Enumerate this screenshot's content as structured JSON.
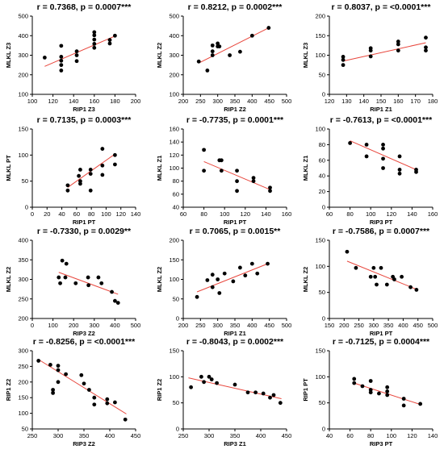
{
  "charts": [
    {
      "title": "r = 0.7368, p = 0.0007***",
      "xlabel": "RIP1 Z3",
      "ylabel": "MLKL Z3",
      "xlim": [
        100,
        200
      ],
      "xticks": [
        100,
        120,
        140,
        160,
        180,
        200
      ],
      "ylim": [
        100,
        500
      ],
      "yticks": [
        100,
        200,
        300,
        400,
        500
      ],
      "points": [
        [
          112,
          288
        ],
        [
          128,
          348
        ],
        [
          128,
          292
        ],
        [
          128,
          272
        ],
        [
          128,
          250
        ],
        [
          128,
          222
        ],
        [
          143,
          320
        ],
        [
          143,
          300
        ],
        [
          143,
          270
        ],
        [
          160,
          418
        ],
        [
          160,
          402
        ],
        [
          160,
          380
        ],
        [
          160,
          358
        ],
        [
          160,
          338
        ],
        [
          175,
          378
        ],
        [
          175,
          360
        ],
        [
          180,
          400
        ]
      ],
      "fit": [
        [
          112,
          243
        ],
        [
          180,
          398
        ]
      ]
    },
    {
      "title": "r = 0.8212, p = 0.0002***",
      "xlabel": "RIP1 Z2",
      "ylabel": "MLKL Z2",
      "xlim": [
        200,
        500
      ],
      "xticks": [
        200,
        250,
        300,
        350,
        400,
        450,
        500
      ],
      "ylim": [
        100,
        500
      ],
      "yticks": [
        100,
        200,
        300,
        400,
        500
      ],
      "points": [
        [
          245,
          268
        ],
        [
          270,
          222
        ],
        [
          285,
          350
        ],
        [
          285,
          320
        ],
        [
          285,
          300
        ],
        [
          300,
          360
        ],
        [
          300,
          345
        ],
        [
          305,
          345
        ],
        [
          335,
          300
        ],
        [
          365,
          318
        ],
        [
          400,
          400
        ],
        [
          448,
          440
        ]
      ],
      "fit": [
        [
          245,
          260
        ],
        [
          448,
          440
        ]
      ]
    },
    {
      "title": "r = 0.8037, p = <0.0001***",
      "xlabel": "RIP1 Z1",
      "ylabel": "MLKL Z3",
      "xlim": [
        120,
        180
      ],
      "xticks": [
        120,
        130,
        140,
        150,
        160,
        170,
        180
      ],
      "ylim": [
        0,
        200
      ],
      "yticks": [
        0,
        50,
        100,
        150,
        200
      ],
      "points": [
        [
          128,
          96
        ],
        [
          128,
          88
        ],
        [
          128,
          75
        ],
        [
          144,
          118
        ],
        [
          144,
          112
        ],
        [
          144,
          97
        ],
        [
          160,
          135
        ],
        [
          160,
          128
        ],
        [
          160,
          112
        ],
        [
          176,
          145
        ],
        [
          176,
          120
        ],
        [
          176,
          112
        ]
      ],
      "fit": [
        [
          128,
          85
        ],
        [
          176,
          132
        ]
      ]
    },
    {
      "title": "r = 0.7135, p = 0.0003***",
      "xlabel": "RIP1 PT",
      "ylabel": "MLKL PT",
      "xlim": [
        0,
        140
      ],
      "xticks": [
        0,
        20,
        40,
        60,
        80,
        100,
        120,
        140
      ],
      "ylim": [
        0,
        150
      ],
      "yticks": [
        0,
        50,
        100,
        150
      ],
      "points": [
        [
          48,
          42
        ],
        [
          48,
          32
        ],
        [
          63,
          60
        ],
        [
          65,
          72
        ],
        [
          65,
          50
        ],
        [
          65,
          45
        ],
        [
          79,
          72
        ],
        [
          79,
          64
        ],
        [
          79,
          32
        ],
        [
          95,
          112
        ],
        [
          95,
          80
        ],
        [
          95,
          62
        ],
        [
          112,
          100
        ],
        [
          112,
          82
        ]
      ],
      "fit": [
        [
          48,
          38
        ],
        [
          112,
          102
        ]
      ]
    },
    {
      "title": "r = -0.7735, p = 0.0001***",
      "xlabel": "RIP1 PT",
      "ylabel": "MLKL Z1",
      "xlim": [
        60,
        160
      ],
      "xticks": [
        60,
        80,
        100,
        120,
        140,
        160
      ],
      "ylim": [
        40,
        160
      ],
      "yticks": [
        40,
        60,
        80,
        100,
        120,
        140,
        160
      ],
      "points": [
        [
          80,
          128
        ],
        [
          80,
          96
        ],
        [
          95,
          112
        ],
        [
          97,
          112
        ],
        [
          97,
          96
        ],
        [
          112,
          96
        ],
        [
          112,
          80
        ],
        [
          112,
          65
        ],
        [
          128,
          85
        ],
        [
          128,
          80
        ],
        [
          144,
          70
        ],
        [
          144,
          65
        ]
      ],
      "fit": [
        [
          80,
          110
        ],
        [
          144,
          67
        ]
      ]
    },
    {
      "title": "r = -0.7613, p = <0.0001***",
      "xlabel": "RIP3 PT",
      "ylabel": "MLKL Z1",
      "xlim": [
        60,
        160
      ],
      "xticks": [
        60,
        80,
        100,
        120,
        140,
        160
      ],
      "ylim": [
        0,
        100
      ],
      "yticks": [
        0,
        20,
        40,
        60,
        80,
        100
      ],
      "points": [
        [
          80,
          82
        ],
        [
          96,
          80
        ],
        [
          96,
          65
        ],
        [
          112,
          80
        ],
        [
          112,
          75
        ],
        [
          112,
          62
        ],
        [
          112,
          50
        ],
        [
          128,
          65
        ],
        [
          128,
          48
        ],
        [
          128,
          43
        ],
        [
          144,
          48
        ],
        [
          144,
          45
        ]
      ],
      "fit": [
        [
          80,
          85
        ],
        [
          144,
          48
        ]
      ]
    },
    {
      "title": "r = -0.7330, p = 0.0029**",
      "xlabel": "RIP3 Z2",
      "ylabel": "MLKL Z2",
      "xlim": [
        0,
        500
      ],
      "xticks": [
        0,
        100,
        200,
        300,
        400,
        500
      ],
      "ylim": [
        200,
        400
      ],
      "yticks": [
        200,
        250,
        300,
        350,
        400
      ],
      "points": [
        [
          128,
          305
        ],
        [
          135,
          290
        ],
        [
          145,
          348
        ],
        [
          160,
          305
        ],
        [
          165,
          340
        ],
        [
          210,
          290
        ],
        [
          270,
          305
        ],
        [
          272,
          285
        ],
        [
          320,
          305
        ],
        [
          335,
          290
        ],
        [
          385,
          268
        ],
        [
          400,
          245
        ],
        [
          415,
          240
        ]
      ],
      "fit": [
        [
          128,
          318
        ],
        [
          415,
          262
        ]
      ]
    },
    {
      "title": "r = 0.7065, p = 0.0015**",
      "xlabel": "RIP1 Z1",
      "ylabel": "MLKL Z2",
      "xlim": [
        200,
        500
      ],
      "xticks": [
        200,
        250,
        300,
        350,
        400,
        450,
        500
      ],
      "ylim": [
        0,
        200
      ],
      "yticks": [
        0,
        50,
        100,
        150,
        200
      ],
      "points": [
        [
          240,
          55
        ],
        [
          270,
          98
        ],
        [
          285,
          112
        ],
        [
          285,
          80
        ],
        [
          300,
          100
        ],
        [
          305,
          65
        ],
        [
          320,
          115
        ],
        [
          345,
          95
        ],
        [
          365,
          130
        ],
        [
          380,
          110
        ],
        [
          400,
          140
        ],
        [
          415,
          115
        ],
        [
          445,
          140
        ]
      ],
      "fit": [
        [
          240,
          68
        ],
        [
          445,
          140
        ]
      ]
    },
    {
      "title": "r = -0.7586, p = 0.0007***",
      "xlabel": "RIP1 PT",
      "ylabel": "MLKL Z2",
      "xlim": [
        150,
        500
      ],
      "xticks": [
        150,
        200,
        250,
        300,
        350,
        400,
        450,
        500
      ],
      "ylim": [
        0,
        150
      ],
      "yticks": [
        0,
        50,
        100,
        150
      ],
      "points": [
        [
          210,
          128
        ],
        [
          240,
          97
        ],
        [
          290,
          80
        ],
        [
          300,
          97
        ],
        [
          305,
          80
        ],
        [
          310,
          65
        ],
        [
          325,
          97
        ],
        [
          345,
          65
        ],
        [
          365,
          80
        ],
        [
          370,
          75
        ],
        [
          395,
          80
        ],
        [
          425,
          60
        ],
        [
          445,
          55
        ]
      ],
      "fit": [
        [
          210,
          110
        ],
        [
          445,
          56
        ]
      ]
    },
    {
      "title": "r = -0.8256, p = <0.0001***",
      "xlabel": "RIP3 Z2",
      "ylabel": "RIP1 Z2",
      "xlim": [
        250,
        450
      ],
      "xticks": [
        250,
        300,
        350,
        400,
        450
      ],
      "ylim": [
        50,
        300
      ],
      "yticks": [
        50,
        100,
        150,
        200,
        250,
        300
      ],
      "points": [
        [
          262,
          268
        ],
        [
          285,
          255
        ],
        [
          290,
          175
        ],
        [
          290,
          165
        ],
        [
          300,
          252
        ],
        [
          300,
          238
        ],
        [
          300,
          200
        ],
        [
          315,
          225
        ],
        [
          345,
          222
        ],
        [
          350,
          195
        ],
        [
          360,
          175
        ],
        [
          370,
          150
        ],
        [
          370,
          128
        ],
        [
          395,
          145
        ],
        [
          395,
          132
        ],
        [
          410,
          135
        ],
        [
          430,
          80
        ]
      ],
      "fit": [
        [
          262,
          272
        ],
        [
          432,
          98
        ]
      ]
    },
    {
      "title": "r = -0.8043, p = 0.0002***",
      "xlabel": "RIP3 Z1",
      "ylabel": "RIP1 Z2",
      "xlim": [
        250,
        450
      ],
      "xticks": [
        250,
        300,
        350,
        400,
        450
      ],
      "ylim": [
        0,
        150
      ],
      "yticks": [
        0,
        50,
        100,
        150
      ],
      "points": [
        [
          265,
          80
        ],
        [
          285,
          100
        ],
        [
          290,
          90
        ],
        [
          300,
          100
        ],
        [
          305,
          95
        ],
        [
          315,
          88
        ],
        [
          350,
          85
        ],
        [
          375,
          70
        ],
        [
          390,
          70
        ],
        [
          405,
          68
        ],
        [
          418,
          60
        ],
        [
          425,
          65
        ],
        [
          438,
          50
        ]
      ],
      "fit": [
        [
          260,
          98
        ],
        [
          440,
          58
        ]
      ]
    },
    {
      "title": "r = -0.7125, p = 0.0004***",
      "xlabel": "RIP3 PT",
      "ylabel": "RIP1 PT",
      "xlim": [
        40,
        140
      ],
      "xticks": [
        40,
        60,
        80,
        100,
        120,
        140
      ],
      "ylim": [
        0,
        150
      ],
      "yticks": [
        0,
        50,
        100,
        150
      ],
      "points": [
        [
          64,
          96
        ],
        [
          64,
          88
        ],
        [
          72,
          82
        ],
        [
          80,
          92
        ],
        [
          80,
          75
        ],
        [
          80,
          70
        ],
        [
          88,
          68
        ],
        [
          96,
          80
        ],
        [
          96,
          72
        ],
        [
          96,
          65
        ],
        [
          112,
          58
        ],
        [
          112,
          45
        ],
        [
          128,
          48
        ]
      ],
      "fit": [
        [
          64,
          88
        ],
        [
          128,
          47
        ]
      ]
    }
  ],
  "chart_data": {
    "type": "scatter",
    "note_series": "see charts[]"
  }
}
